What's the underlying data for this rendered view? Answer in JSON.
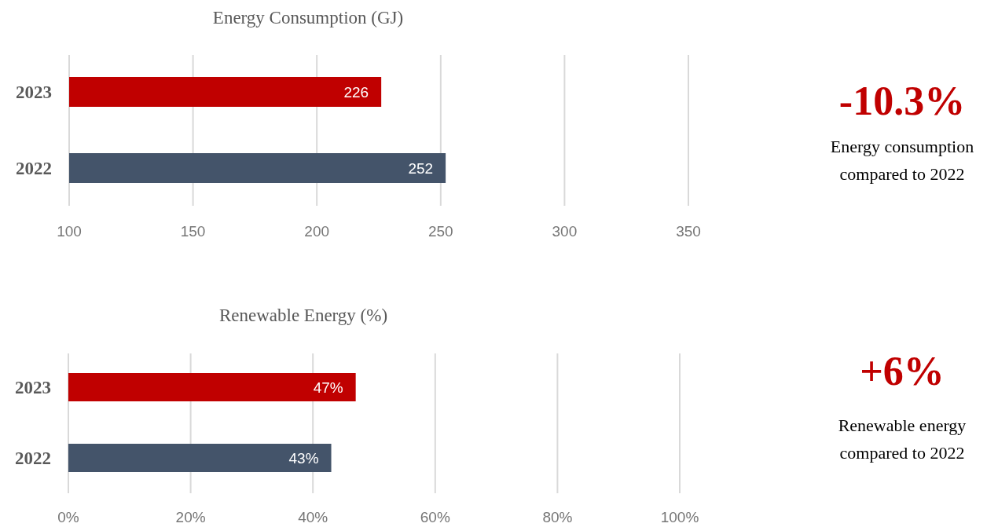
{
  "chart_data": [
    {
      "type": "bar",
      "orientation": "horizontal",
      "title": "Energy Consumption (GJ)",
      "categories": [
        "2023",
        "2022"
      ],
      "values": [
        226,
        252
      ],
      "colors": [
        "#c00000",
        "#44546a"
      ],
      "xlim": [
        100,
        350
      ],
      "xticks": [
        100,
        150,
        200,
        250,
        300,
        350
      ],
      "grid": "x",
      "data_labels": true
    },
    {
      "type": "other",
      "title": "-10.3%",
      "annotations": [
        "Energy consumption compared to 2022"
      ]
    },
    {
      "type": "bar",
      "orientation": "horizontal",
      "title": "Renewable Energy (%)",
      "categories": [
        "2023",
        "2022"
      ],
      "values": [
        47,
        43
      ],
      "colors": [
        "#c00000",
        "#44546a"
      ],
      "xlim": [
        0,
        100
      ],
      "xticks": [
        {
          "value": 0,
          "label": "0%"
        },
        {
          "value": 20,
          "label": "20%"
        },
        {
          "value": 40,
          "label": "40%"
        },
        {
          "value": 60,
          "label": "60%"
        },
        {
          "value": 80,
          "label": "80%"
        },
        {
          "value": 100,
          "label": "100%"
        }
      ],
      "grid": "x",
      "value_labels": [
        "47%",
        "43%"
      ]
    },
    {
      "type": "other",
      "title": "+6%",
      "annotations": [
        "Renewable energy compared to 2022"
      ]
    }
  ]
}
